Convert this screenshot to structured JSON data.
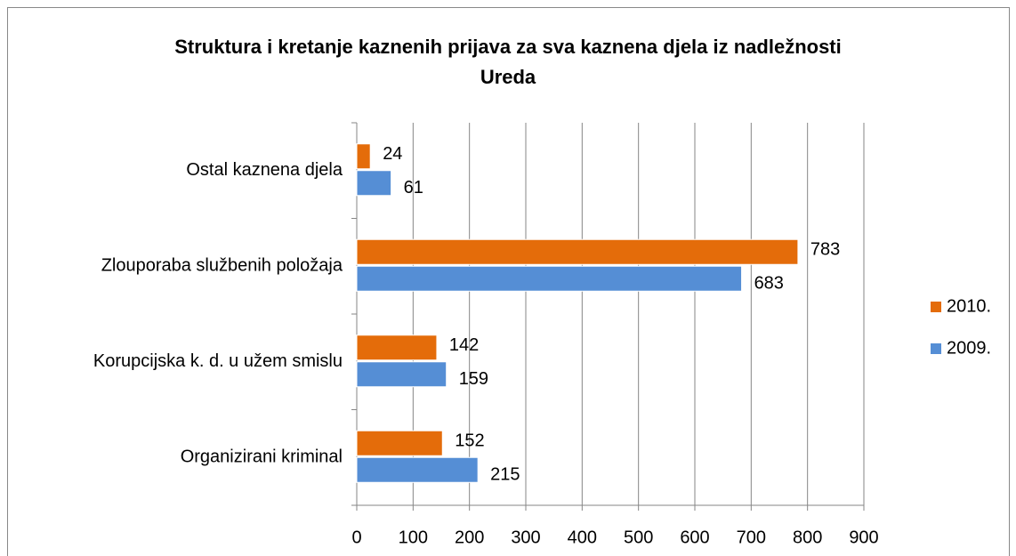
{
  "chart_data": {
    "type": "hbar",
    "title": "Struktura i kretanje kaznenih prijava za sva kaznena djela  iz nadležnosti Ureda",
    "categories": [
      "Organizirani kriminal",
      "Korupcijska k. d. u užem smislu",
      "Zlouporaba službenih položaja",
      "Ostal kaznena djela"
    ],
    "series": [
      {
        "name": "2010.",
        "color": "#e46c0a",
        "values": [
          152,
          142,
          783,
          24
        ]
      },
      {
        "name": "2009.",
        "color": "#558ed5",
        "values": [
          215,
          159,
          683,
          61
        ]
      }
    ],
    "xlim": [
      0,
      900
    ],
    "xticks": [
      0,
      100,
      200,
      300,
      400,
      500,
      600,
      700,
      800,
      900
    ],
    "grid": true,
    "legend": "right"
  }
}
